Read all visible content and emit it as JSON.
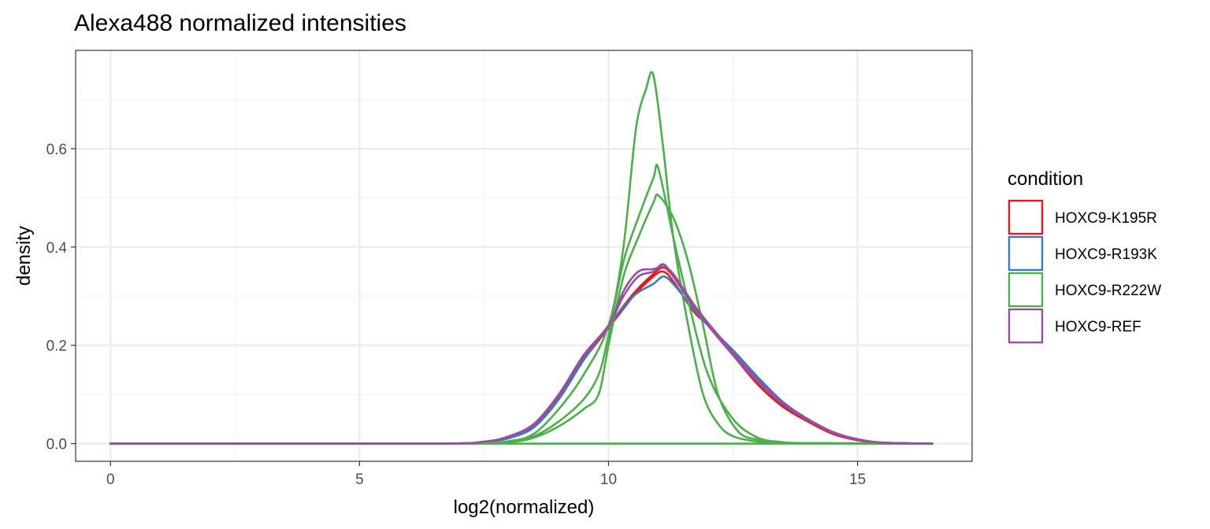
{
  "chart_data": {
    "type": "line",
    "title": "Alexa488 normalized intensities",
    "xlabel": "log2(normalized)",
    "ylabel": "density",
    "xlim": [
      -0.7,
      17.3
    ],
    "ylim": [
      -0.036,
      0.8
    ],
    "x_ticks": [
      0,
      5,
      10,
      15
    ],
    "x_tick_labels": [
      "0",
      "5",
      "10",
      "15"
    ],
    "y_ticks": [
      0.0,
      0.2,
      0.4,
      0.6
    ],
    "y_tick_labels": [
      "0.0",
      "0.2",
      "0.4",
      "0.6"
    ],
    "grid": true,
    "legend": {
      "title": "condition",
      "position": "right",
      "entries": [
        {
          "label": "HOXC9-K195R",
          "color": "#e41a1c"
        },
        {
          "label": "HOXC9-R193K",
          "color": "#377eb8"
        },
        {
          "label": "HOXC9-R222W",
          "color": "#4daf4a"
        },
        {
          "label": "HOXC9-REF",
          "color": "#984ea3"
        }
      ]
    },
    "series": [
      {
        "condition": "HOXC9-K195R",
        "color": "#e41a1c",
        "x": [
          0,
          6.5,
          7.5,
          8.0,
          8.5,
          9.0,
          9.5,
          10.0,
          10.5,
          10.9,
          11.1,
          11.3,
          11.7,
          12.0,
          12.5,
          13.0,
          13.5,
          14.0,
          14.5,
          15.0,
          15.5,
          16.5
        ],
        "y": [
          0,
          0,
          0.003,
          0.012,
          0.035,
          0.09,
          0.17,
          0.235,
          0.3,
          0.34,
          0.35,
          0.33,
          0.27,
          0.24,
          0.18,
          0.12,
          0.075,
          0.045,
          0.02,
          0.007,
          0.001,
          0
        ]
      },
      {
        "condition": "HOXC9-K195R",
        "color": "#e41a1c",
        "x": [
          0,
          6.5,
          7.5,
          8.0,
          8.5,
          9.0,
          9.5,
          10.0,
          10.5,
          10.9,
          11.1,
          11.3,
          11.7,
          12.0,
          12.5,
          13.0,
          13.5,
          14.0,
          14.5,
          15.0,
          15.5,
          16.5
        ],
        "y": [
          0,
          0,
          0.003,
          0.013,
          0.038,
          0.095,
          0.175,
          0.24,
          0.305,
          0.345,
          0.358,
          0.34,
          0.28,
          0.245,
          0.185,
          0.125,
          0.078,
          0.046,
          0.02,
          0.007,
          0.001,
          0
        ]
      },
      {
        "condition": "HOXC9-R193K",
        "color": "#377eb8",
        "x": [
          0,
          6.5,
          7.5,
          8.0,
          8.5,
          9.0,
          9.5,
          10.0,
          10.5,
          10.9,
          11.1,
          11.3,
          11.7,
          12.0,
          12.5,
          13.0,
          13.5,
          14.0,
          14.5,
          15.0,
          15.5,
          16.5
        ],
        "y": [
          0,
          0,
          0.003,
          0.011,
          0.033,
          0.09,
          0.17,
          0.24,
          0.3,
          0.325,
          0.34,
          0.325,
          0.275,
          0.24,
          0.19,
          0.135,
          0.085,
          0.05,
          0.023,
          0.009,
          0.002,
          0
        ]
      },
      {
        "condition": "HOXC9-R222W",
        "color": "#4daf4a",
        "x": [
          0,
          7.0,
          8.0,
          8.5,
          9.0,
          9.5,
          10.0,
          10.3,
          10.55,
          10.75,
          10.9,
          11.1,
          11.3,
          11.6,
          11.9,
          12.2,
          12.5,
          13.0,
          13.5,
          16.5
        ],
        "y": [
          0,
          0,
          0.005,
          0.02,
          0.07,
          0.14,
          0.24,
          0.4,
          0.64,
          0.72,
          0.75,
          0.6,
          0.42,
          0.24,
          0.1,
          0.04,
          0.015,
          0.004,
          0.001,
          0
        ]
      },
      {
        "condition": "HOXC9-R222W",
        "color": "#4daf4a",
        "x": [
          0,
          7.0,
          8.0,
          8.5,
          9.0,
          9.5,
          9.8,
          10.0,
          10.3,
          10.6,
          10.9,
          11.0,
          11.3,
          11.6,
          12.0,
          12.5,
          13.0,
          13.5,
          14.0,
          16.5
        ],
        "y": [
          0,
          0,
          0.004,
          0.015,
          0.045,
          0.09,
          0.14,
          0.22,
          0.37,
          0.46,
          0.54,
          0.56,
          0.42,
          0.29,
          0.14,
          0.05,
          0.012,
          0.003,
          0.001,
          0
        ]
      },
      {
        "condition": "HOXC9-R222W",
        "color": "#4daf4a",
        "x": [
          0,
          7.0,
          8.0,
          8.5,
          9.0,
          9.5,
          9.8,
          10.0,
          10.3,
          10.6,
          10.9,
          11.0,
          11.3,
          11.6,
          11.9,
          12.2,
          12.6,
          13.0,
          13.5,
          14.0,
          16.5
        ],
        "y": [
          0,
          0,
          0.003,
          0.012,
          0.035,
          0.07,
          0.1,
          0.2,
          0.34,
          0.42,
          0.49,
          0.505,
          0.46,
          0.37,
          0.24,
          0.1,
          0.025,
          0.008,
          0.002,
          0.001,
          0
        ]
      },
      {
        "condition": "HOXC9-R222W",
        "color": "#4daf4a",
        "x": [
          0,
          16.5
        ],
        "y": [
          0,
          0
        ]
      },
      {
        "condition": "HOXC9-REF",
        "color": "#984ea3",
        "x": [
          0,
          6.5,
          7.5,
          8.0,
          8.5,
          9.0,
          9.5,
          10.0,
          10.3,
          10.6,
          10.9,
          11.1,
          11.3,
          11.7,
          12.0,
          12.5,
          13.0,
          13.5,
          14.0,
          14.5,
          15.0,
          15.5,
          16.5
        ],
        "y": [
          0,
          0,
          0.004,
          0.015,
          0.04,
          0.1,
          0.18,
          0.24,
          0.3,
          0.34,
          0.35,
          0.365,
          0.34,
          0.28,
          0.24,
          0.18,
          0.125,
          0.08,
          0.048,
          0.022,
          0.008,
          0.002,
          0
        ]
      },
      {
        "condition": "HOXC9-REF",
        "color": "#984ea3",
        "x": [
          0,
          6.5,
          7.5,
          8.0,
          8.5,
          9.0,
          9.5,
          10.0,
          10.3,
          10.6,
          10.9,
          11.1,
          11.3,
          11.7,
          12.0,
          12.5,
          13.0,
          13.5,
          14.0,
          14.5,
          15.0,
          15.5,
          16.5
        ],
        "y": [
          0,
          0,
          0.004,
          0.014,
          0.038,
          0.098,
          0.178,
          0.238,
          0.31,
          0.35,
          0.355,
          0.36,
          0.345,
          0.285,
          0.245,
          0.185,
          0.13,
          0.083,
          0.05,
          0.024,
          0.009,
          0.002,
          0
        ]
      }
    ]
  }
}
